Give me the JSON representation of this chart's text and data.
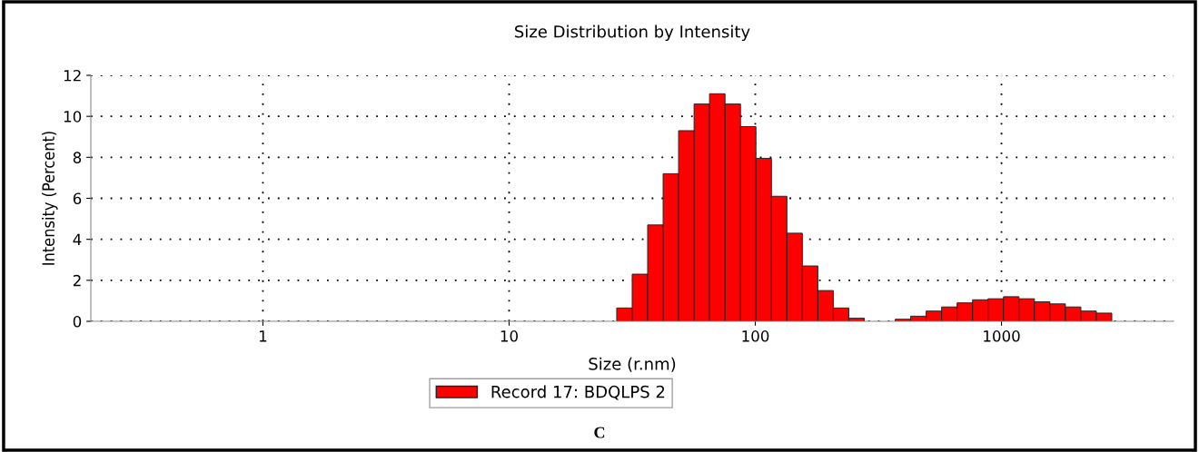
{
  "chart_data": {
    "type": "histogram",
    "title": "Size Distribution by Intensity",
    "xlabel": "Size (r.nm)",
    "ylabel": "Intensity (Percent)",
    "log": "x",
    "xlim": [
      0.2,
      5000
    ],
    "xticks": [
      1,
      10,
      100,
      1000
    ],
    "ylim": [
      0,
      12
    ],
    "yticks": [
      0,
      2,
      4,
      6,
      8,
      10,
      12
    ],
    "grid": true,
    "legend": "bottom",
    "bins": [
      27.36,
      31.62,
      36.54,
      42.23,
      48.81,
      56.41,
      65.19,
      75.34,
      87.07,
      100.6,
      116.3,
      134.4,
      155.3,
      179.5,
      207.4,
      239.8,
      277.1,
      320.2,
      370.1,
      427.7,
      494.3,
      571.3,
      660.2,
      763.0,
      881.8,
      1019,
      1178,
      1361,
      1573,
      1818,
      2101,
      2428,
      2806
    ],
    "series": [
      {
        "name": "Record 17: BDQLPS 2",
        "color": "#ff0000",
        "values": [
          0.65,
          2.3,
          4.7,
          7.2,
          9.3,
          10.6,
          11.1,
          10.6,
          9.5,
          7.95,
          6.1,
          4.3,
          2.7,
          1.5,
          0.65,
          0.15,
          0,
          0,
          0.1,
          0.25,
          0.5,
          0.7,
          0.9,
          1.05,
          1.1,
          1.2,
          1.1,
          0.95,
          0.85,
          0.7,
          0.5,
          0.4
        ]
      }
    ],
    "annotations": [
      "C"
    ]
  }
}
